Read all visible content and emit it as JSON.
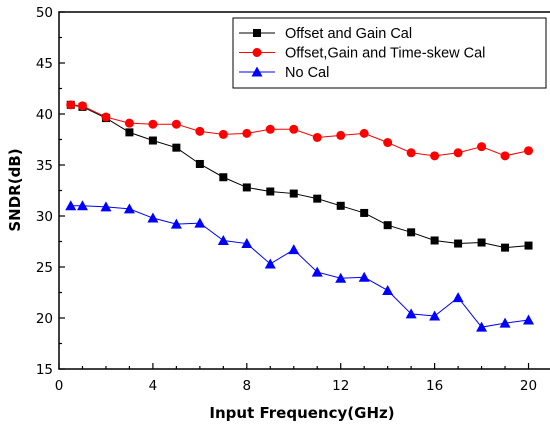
{
  "chart_data": {
    "type": "line",
    "xlabel": "Input Frequency(GHz)",
    "ylabel": "SNDR(dB)",
    "xlim": [
      0,
      21
    ],
    "ylim": [
      15,
      50
    ],
    "xticks": [
      0,
      4,
      8,
      12,
      16,
      20
    ],
    "yticks": [
      15,
      20,
      25,
      30,
      35,
      40,
      45,
      50
    ],
    "grid": false,
    "legend_position": "top-right",
    "series": [
      {
        "name": "Offset and Gain Cal",
        "color": "#000000",
        "marker": "square",
        "x": [
          0.5,
          1,
          2,
          3,
          4,
          5,
          6,
          7,
          8,
          9,
          10,
          11,
          12,
          13,
          14,
          15,
          16,
          17,
          18,
          19,
          20
        ],
        "values": [
          40.9,
          40.7,
          39.6,
          38.2,
          37.4,
          36.7,
          35.1,
          33.8,
          32.8,
          32.4,
          32.2,
          31.7,
          31.0,
          30.3,
          29.1,
          28.4,
          27.6,
          27.3,
          27.4,
          26.9,
          27.1
        ]
      },
      {
        "name": "Offset,Gain and Time-skew Cal",
        "color": "#ff0000",
        "marker": "circle",
        "x": [
          0.5,
          1,
          2,
          3,
          4,
          5,
          6,
          7,
          8,
          9,
          10,
          11,
          12,
          13,
          14,
          15,
          16,
          17,
          18,
          19,
          20
        ],
        "values": [
          40.9,
          40.8,
          39.7,
          39.1,
          39.0,
          39.0,
          38.3,
          38.0,
          38.1,
          38.5,
          38.5,
          37.7,
          37.9,
          38.1,
          37.2,
          36.2,
          35.9,
          36.2,
          36.8,
          35.9,
          36.4
        ]
      },
      {
        "name": "No Cal",
        "color": "#0000ff",
        "marker": "triangle",
        "x": [
          0.5,
          1,
          2,
          3,
          4,
          5,
          6,
          7,
          8,
          9,
          10,
          11,
          12,
          13,
          14,
          15,
          16,
          17,
          18,
          19,
          20
        ],
        "values": [
          31.0,
          31.0,
          30.9,
          30.7,
          29.8,
          29.2,
          29.3,
          27.6,
          27.3,
          25.3,
          26.7,
          24.5,
          23.9,
          24.0,
          22.7,
          20.4,
          20.2,
          22.0,
          19.1,
          19.5,
          19.8
        ]
      }
    ]
  }
}
